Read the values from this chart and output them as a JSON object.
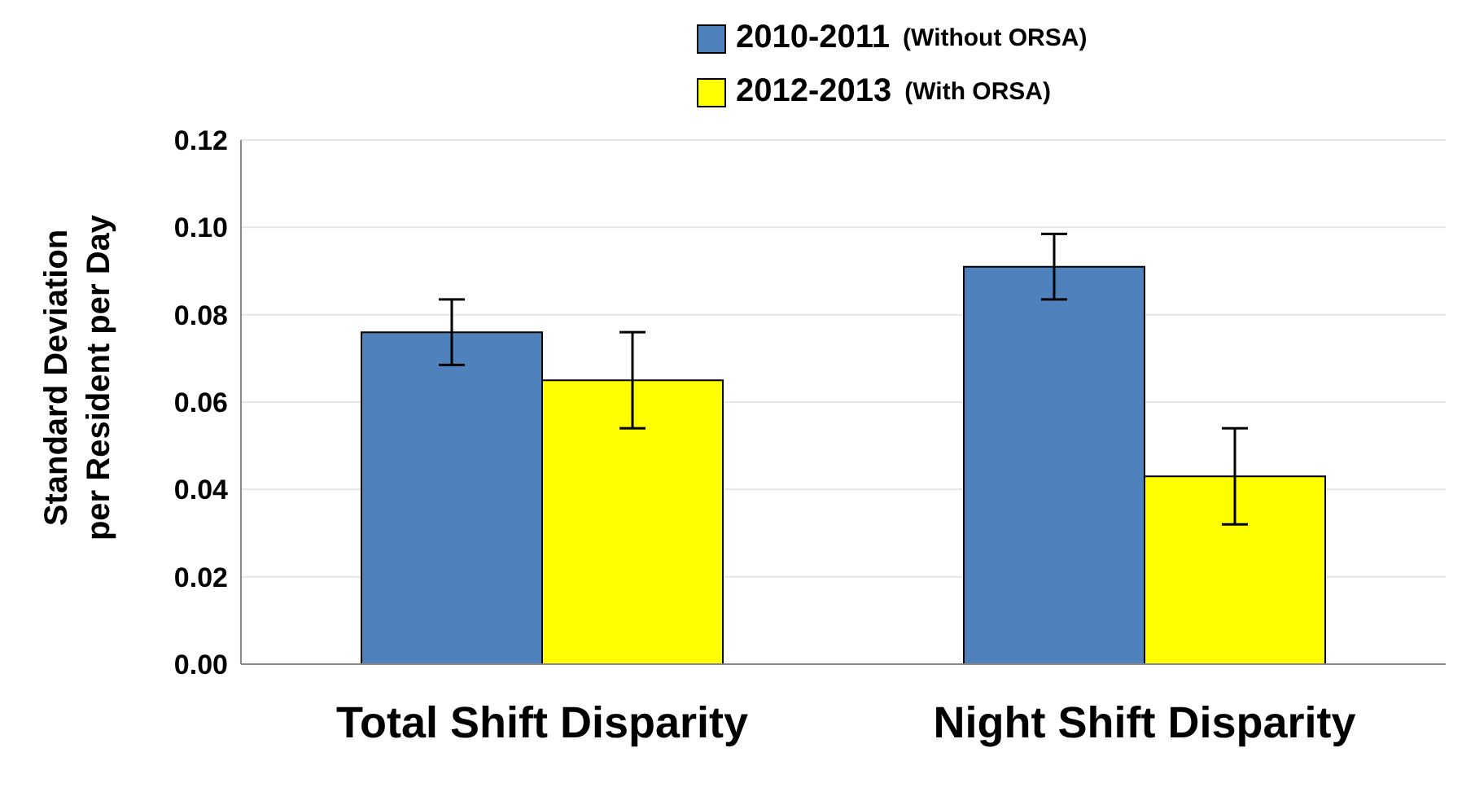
{
  "chart_data": {
    "type": "bar",
    "ylabel": "Standard Deviation\nper Resident per Day",
    "categories": [
      "Total Shift Disparity",
      "Night Shift Disparity"
    ],
    "series": [
      {
        "name": "2010-2011 (Without ORSA)",
        "color": "#4f81bd",
        "values": [
          0.076,
          0.091
        ],
        "errors": [
          0.0075,
          0.0075
        ]
      },
      {
        "name": "2012-2013 (With ORSA)",
        "color": "#ffff00",
        "values": [
          0.065,
          0.043
        ],
        "errors": [
          0.011,
          0.011
        ]
      }
    ],
    "ylim": [
      0,
      0.12
    ],
    "yticks": [
      {
        "value": 0,
        "label": "0.00"
      },
      {
        "value": 0.02,
        "label": "0.02"
      },
      {
        "value": 0.04,
        "label": "0.04"
      },
      {
        "value": 0.06,
        "label": "0.06"
      },
      {
        "value": 0.08,
        "label": "0.08"
      },
      {
        "value": 0.1,
        "label": "0.10"
      },
      {
        "value": 0.12,
        "label": "0.12"
      }
    ],
    "grid": "y",
    "legend": "top"
  }
}
